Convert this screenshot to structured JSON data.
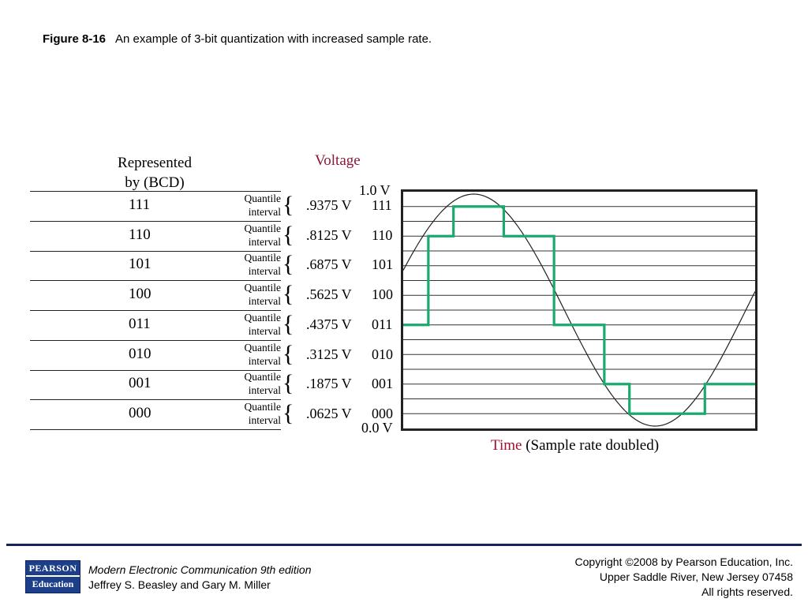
{
  "caption": {
    "figure": "Figure 8-16",
    "text": "An example of 3-bit quantization with increased sample rate."
  },
  "diagram": {
    "represented_header": [
      "Represented",
      "by (BCD)"
    ],
    "voltage_header": "Voltage",
    "axis_top": "1.0 V",
    "axis_bottom": "0.0 V",
    "time_label": "Time",
    "time_note": "(Sample rate doubled)",
    "quantile_word": "Quantile",
    "interval_word": "interval",
    "rows": [
      {
        "code": "111",
        "voltage": ".9375 V"
      },
      {
        "code": "110",
        "voltage": ".8125 V"
      },
      {
        "code": "101",
        "voltage": ".6875 V"
      },
      {
        "code": "100",
        "voltage": ".5625 V"
      },
      {
        "code": "011",
        "voltage": ".4375 V"
      },
      {
        "code": "010",
        "voltage": ".3125 V"
      },
      {
        "code": "001",
        "voltage": ".1875 V"
      },
      {
        "code": "000",
        "voltage": ".0625 V"
      }
    ],
    "quantized_levels": [
      3,
      6,
      7,
      7,
      6,
      6,
      3,
      3,
      1,
      0,
      0,
      0,
      1,
      1
    ],
    "colors": {
      "staircase": "#1aaa6e",
      "voltage_header": "#8b1a3a",
      "time_label": "#a01030",
      "sine": "#222222"
    }
  },
  "footer": {
    "logo_top": "PEARSON",
    "logo_bottom": "Education",
    "book_title": "Modern Electronic Communication 9th edition",
    "authors": "Jeffrey S. Beasley and Gary M. Miller",
    "copyright": [
      "Copyright ©2008 by Pearson Education, Inc.",
      "Upper Saddle River, New Jersey 07458",
      "All rights reserved."
    ]
  }
}
